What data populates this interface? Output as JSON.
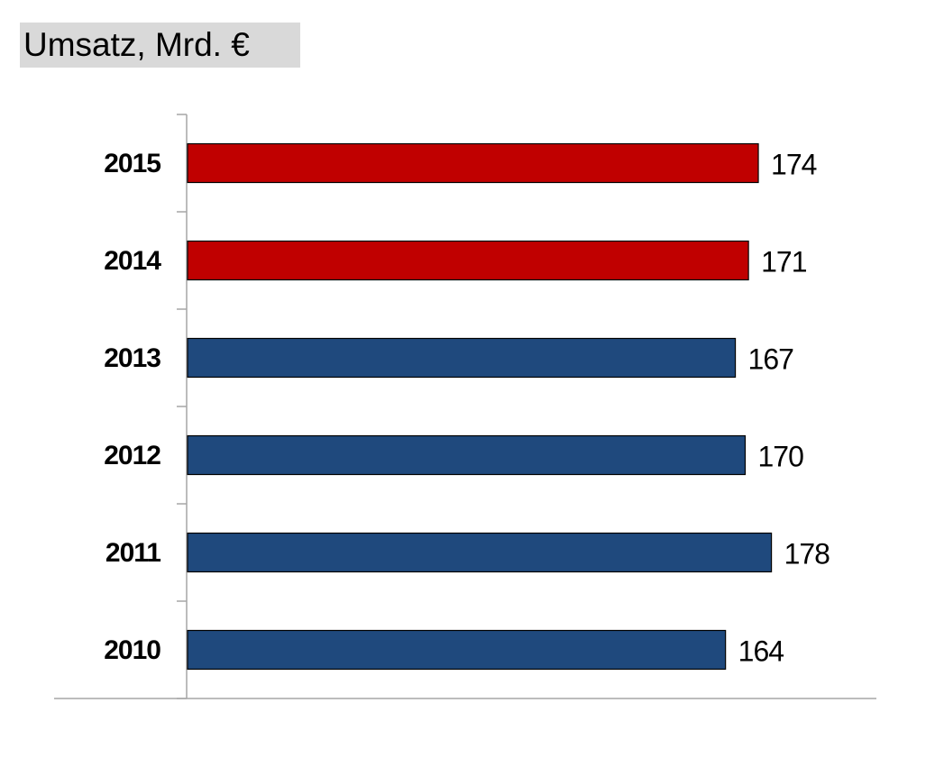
{
  "chart_data": {
    "type": "bar",
    "orientation": "horizontal",
    "title": "Umsatz, Mrd. €",
    "categories": [
      "2015",
      "2014",
      "2013",
      "2012",
      "2011",
      "2010"
    ],
    "values": [
      174,
      171,
      167,
      170,
      178,
      164
    ],
    "colors": [
      "#c00000",
      "#c00000",
      "#1f497d",
      "#1f497d",
      "#1f497d",
      "#1f497d"
    ],
    "xlim": [
      0,
      210
    ]
  }
}
